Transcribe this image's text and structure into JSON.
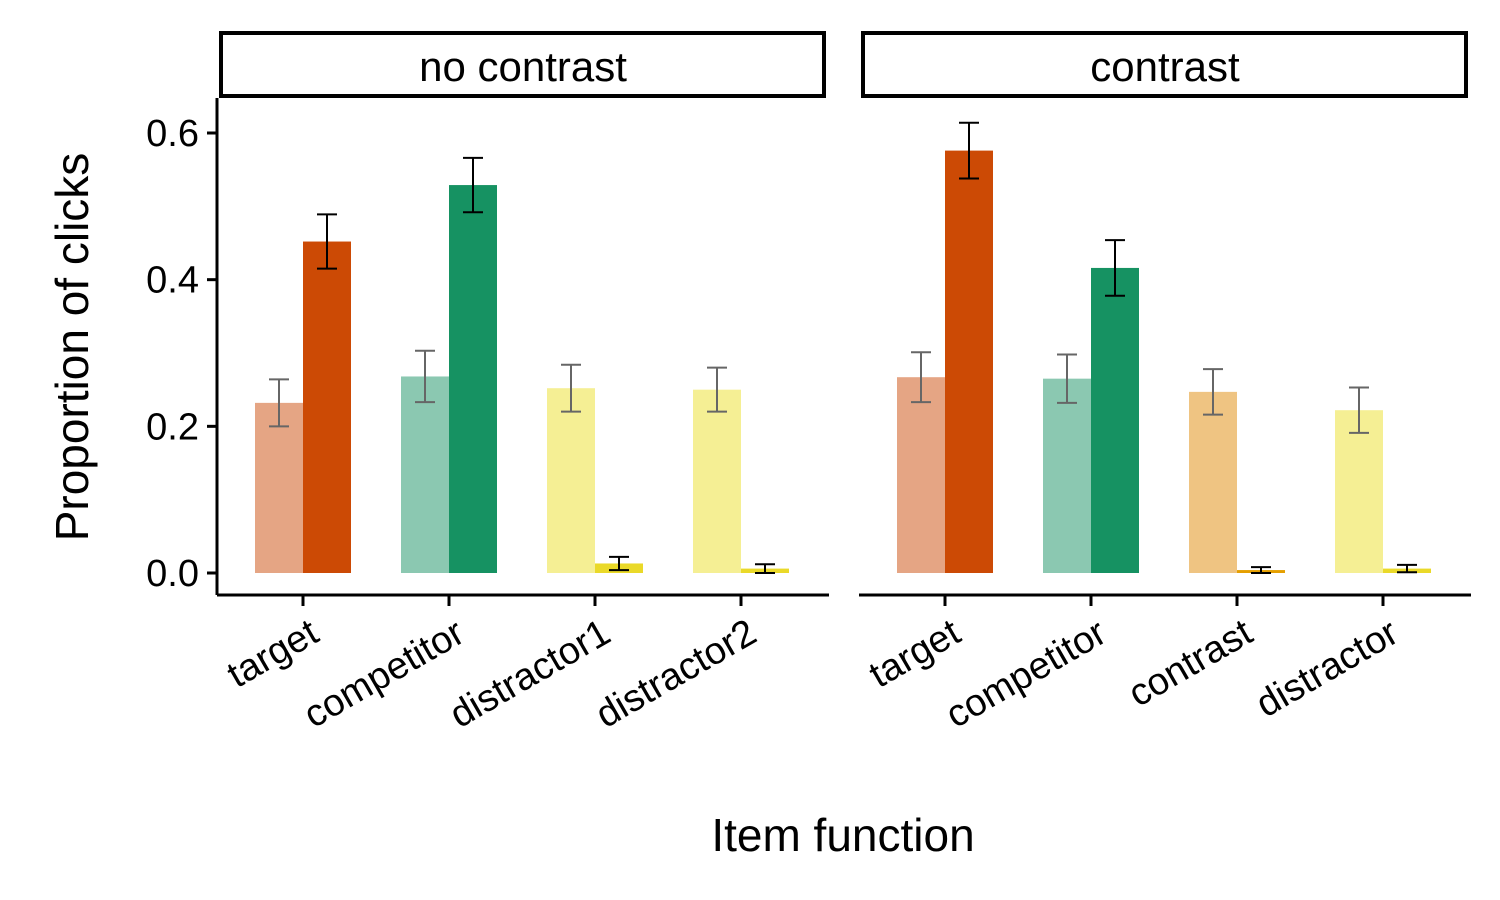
{
  "chart_data": {
    "type": "bar",
    "xlabel": "Item function",
    "ylabel": "Proportion of clicks",
    "ylim": [
      -0.03,
      0.65
    ],
    "yticks": [
      "0.0",
      "0.2",
      "0.4",
      "0.6"
    ],
    "ytick_values": [
      0,
      0.2,
      0.4,
      0.6
    ],
    "grid": false,
    "legend": "none",
    "error_bar_color_light": "#666666",
    "error_bar_color_dark": "#000000",
    "panels": [
      {
        "title": "no contrast",
        "categories": [
          "target",
          "competitor",
          "distractor1",
          "distractor2"
        ],
        "light_values": [
          0.232,
          0.268,
          0.252,
          0.25
        ],
        "light_errors": [
          0.032,
          0.035,
          0.032,
          0.03
        ],
        "dark_values": [
          0.452,
          0.529,
          0.013,
          0.006
        ],
        "dark_errors": [
          0.037,
          0.037,
          0.009,
          0.006
        ],
        "light_colors": [
          "#E5A584",
          "#8BC8B1",
          "#F5EF94",
          "#F5EF94"
        ],
        "dark_colors": [
          "#CC4A05",
          "#169262",
          "#EAD929",
          "#EAD929"
        ]
      },
      {
        "title": "contrast",
        "categories": [
          "target",
          "competitor",
          "contrast",
          "distractor"
        ],
        "light_values": [
          0.267,
          0.265,
          0.247,
          0.222
        ],
        "light_errors": [
          0.034,
          0.033,
          0.031,
          0.031
        ],
        "dark_values": [
          0.576,
          0.416,
          0.004,
          0.006
        ],
        "dark_errors": [
          0.038,
          0.038,
          0.004,
          0.005
        ],
        "light_colors": [
          "#E5A584",
          "#8BC8B1",
          "#EFC482",
          "#F5EF94"
        ],
        "dark_colors": [
          "#CC4A05",
          "#169262",
          "#E59F00",
          "#EAD929"
        ]
      }
    ]
  }
}
